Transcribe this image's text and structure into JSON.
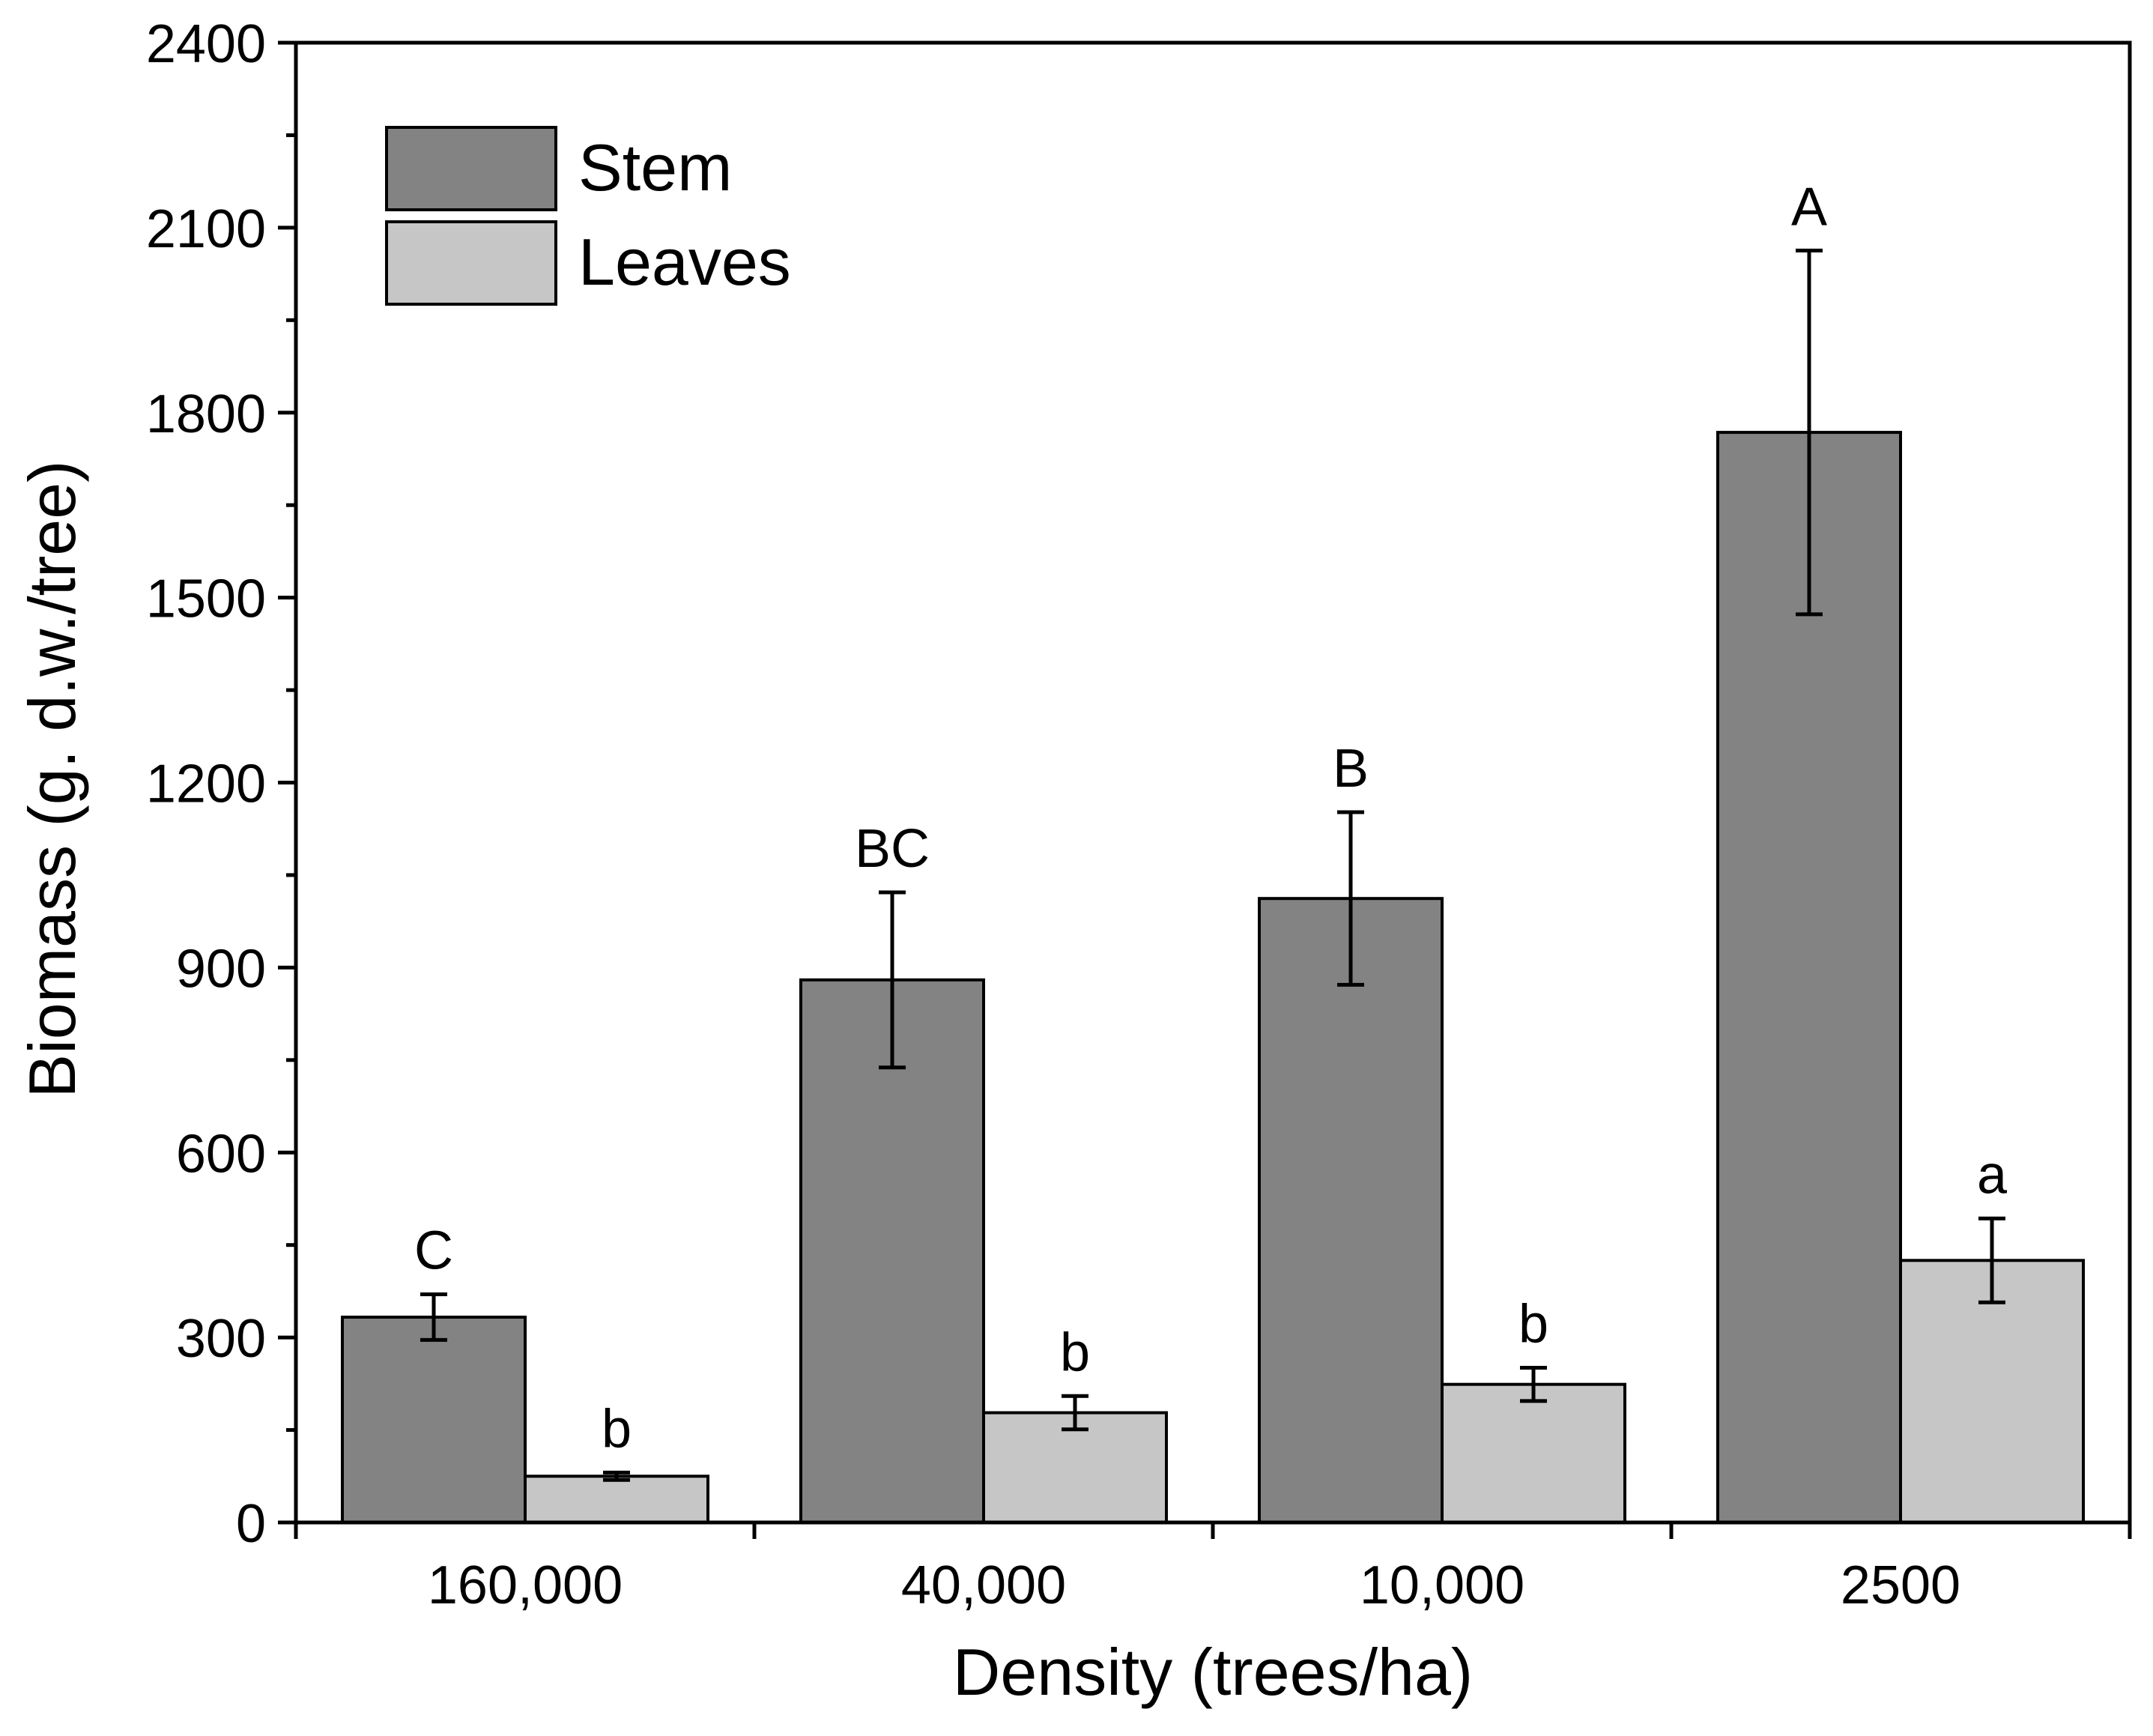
{
  "chart_data": {
    "type": "bar",
    "title": "",
    "xlabel": "Density (trees/ha)",
    "ylabel": "Biomass (g. d.w./tree)",
    "ylim": [
      0,
      2400
    ],
    "yticks": [
      0,
      300,
      600,
      900,
      1200,
      1500,
      1800,
      2100,
      2400
    ],
    "categories": [
      "160,000",
      "40,000",
      "10,000",
      "2500"
    ],
    "legend_position": "top-left",
    "grid": false,
    "series": [
      {
        "name": "Stem",
        "color": "#838383",
        "values": [
          333,
          880,
          1012,
          1768
        ],
        "errors": [
          37,
          142,
          140,
          295
        ],
        "letters": [
          "C",
          "BC",
          "B",
          "A"
        ]
      },
      {
        "name": "Leaves",
        "color": "#c6c6c6",
        "values": [
          75,
          178,
          224,
          425
        ],
        "errors": [
          6,
          27,
          27,
          68
        ],
        "letters": [
          "b",
          "b",
          "b",
          "a"
        ]
      }
    ]
  }
}
